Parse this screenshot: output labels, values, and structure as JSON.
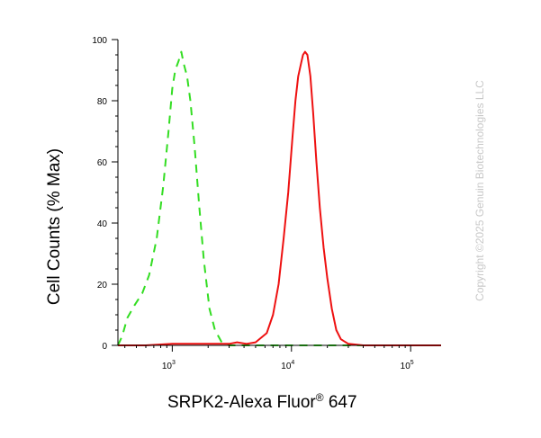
{
  "chart_data": {
    "type": "line",
    "title": "",
    "xlabel": "SRPK2-Alexa Fluor",
    "xlabel_superscript": "®",
    "xlabel_suffix": " 647",
    "ylabel": "Cell Counts (% Max)",
    "xscale": "log",
    "xlim": [
      350,
      180000
    ],
    "ylim": [
      0,
      100
    ],
    "x_major_ticks": [
      {
        "value": 1000,
        "base": "10",
        "exp": "3"
      },
      {
        "value": 10000,
        "base": "10",
        "exp": "4"
      },
      {
        "value": 100000,
        "base": "10",
        "exp": "5"
      }
    ],
    "y_ticks": [
      0,
      20,
      40,
      60,
      80,
      100
    ],
    "grid": false,
    "legend": "none",
    "series": [
      {
        "color": "#33dd22",
        "style": "dashed",
        "points": [
          [
            350,
            0
          ],
          [
            380,
            3
          ],
          [
            420,
            9
          ],
          [
            480,
            13
          ],
          [
            560,
            17
          ],
          [
            640,
            23
          ],
          [
            740,
            35
          ],
          [
            840,
            52
          ],
          [
            930,
            70
          ],
          [
            1000,
            84
          ],
          [
            1060,
            90
          ],
          [
            1130,
            93
          ],
          [
            1190,
            96
          ],
          [
            1250,
            92
          ],
          [
            1330,
            88
          ],
          [
            1420,
            80
          ],
          [
            1540,
            65
          ],
          [
            1680,
            46
          ],
          [
            1840,
            28
          ],
          [
            2050,
            12
          ],
          [
            2280,
            5
          ],
          [
            2600,
            1
          ],
          [
            3000,
            0
          ],
          [
            5000,
            0
          ],
          [
            10000,
            0
          ],
          [
            30000,
            0
          ],
          [
            100000,
            0
          ],
          [
            180000,
            0
          ]
        ]
      },
      {
        "color": "#ee1111",
        "style": "solid",
        "points": [
          [
            350,
            0
          ],
          [
            600,
            0
          ],
          [
            1000,
            0.5
          ],
          [
            2000,
            0.5
          ],
          [
            3000,
            0.5
          ],
          [
            3500,
            1
          ],
          [
            4200,
            0.5
          ],
          [
            5000,
            1
          ],
          [
            6200,
            4
          ],
          [
            7000,
            10
          ],
          [
            7800,
            20
          ],
          [
            8600,
            35
          ],
          [
            9400,
            50
          ],
          [
            10200,
            68
          ],
          [
            10800,
            80
          ],
          [
            11400,
            88
          ],
          [
            12000,
            92
          ],
          [
            12500,
            95
          ],
          [
            13000,
            96
          ],
          [
            13600,
            95
          ],
          [
            14400,
            88
          ],
          [
            15200,
            76
          ],
          [
            16200,
            60
          ],
          [
            17300,
            45
          ],
          [
            18600,
            32
          ],
          [
            20000,
            22
          ],
          [
            21800,
            12
          ],
          [
            23800,
            5
          ],
          [
            26000,
            2
          ],
          [
            30000,
            0.5
          ],
          [
            40000,
            0
          ],
          [
            100000,
            0
          ],
          [
            180000,
            0
          ]
        ]
      }
    ]
  },
  "watermark": "Copyright ©2025 Genuin Biotechnologies LLC"
}
